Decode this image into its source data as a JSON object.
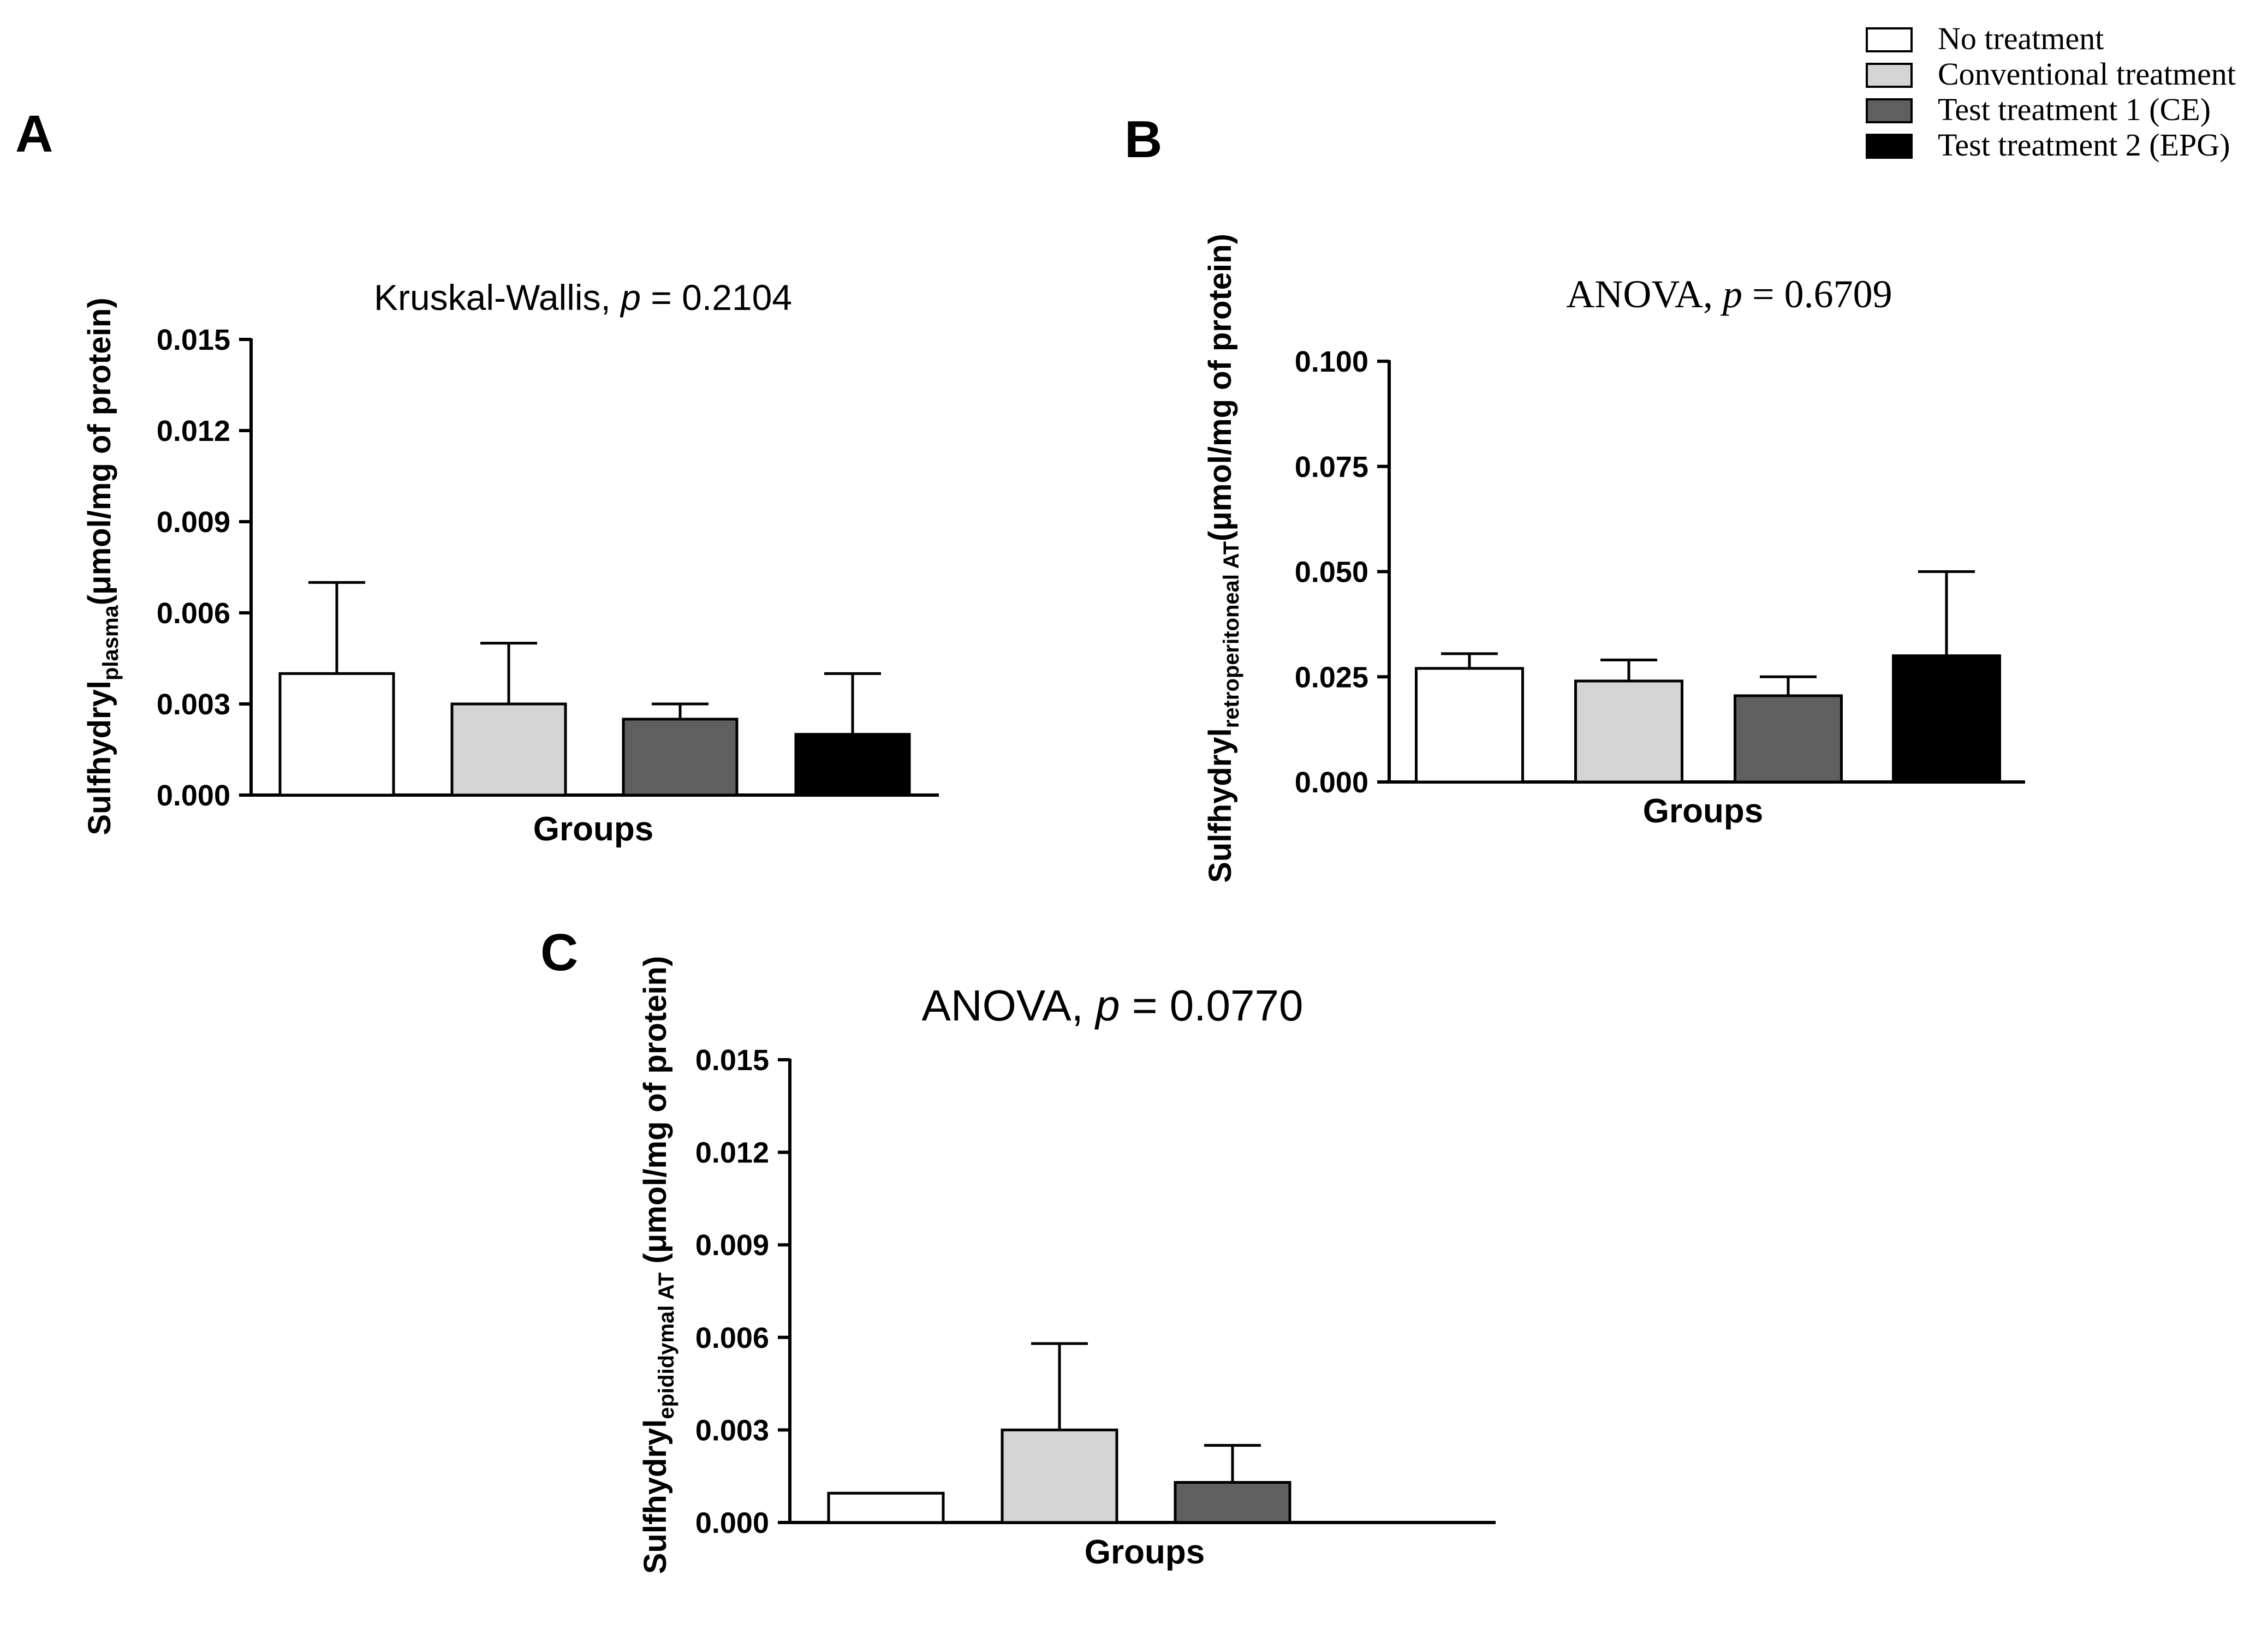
{
  "legend": {
    "items": [
      {
        "label": "No treatment",
        "color": "#ffffff"
      },
      {
        "label": "Conventional treatment",
        "color": "#d4d4d4"
      },
      {
        "label": "Test treatment 1 (CE)",
        "color": "#5f5f5f"
      },
      {
        "label": "Test treatment 2 (EPG)",
        "color": "#000000"
      }
    ]
  },
  "chart_data": [
    {
      "panel": "A",
      "type": "bar",
      "title_prefix": "Kruskal-Wallis, ",
      "title_p": "p",
      "title_suffix": " = 0.2104",
      "ylabel_main": "Sulfhydryl",
      "ylabel_sub": "plasma",
      "ylabel_unit": "(μmol/mg of protein)",
      "xlabel": "Groups",
      "ylim": [
        0,
        0.015
      ],
      "yticks": [
        "0.000",
        "0.003",
        "0.006",
        "0.009",
        "0.012",
        "0.015"
      ],
      "categories": [
        "No treatment",
        "Conventional treatment",
        "Test treatment 1 (CE)",
        "Test treatment 2 (EPG)"
      ],
      "values": [
        0.004,
        0.003,
        0.0025,
        0.002
      ],
      "errors": [
        0.003,
        0.002,
        0.0005,
        0.002
      ]
    },
    {
      "panel": "B",
      "type": "bar",
      "title_prefix": "ANOVA, ",
      "title_p": "p",
      "title_suffix": " = 0.6709",
      "ylabel_main": "Sulfhydryl",
      "ylabel_sub": "retroperitoneal AT",
      "ylabel_unit": "(μmol/mg of protein)",
      "xlabel": "Groups",
      "ylim": [
        0,
        0.1
      ],
      "yticks": [
        "0.000",
        "0.025",
        "0.050",
        "0.075",
        "0.100"
      ],
      "categories": [
        "No treatment",
        "Conventional treatment",
        "Test treatment 1 (CE)",
        "Test treatment 2 (EPG)"
      ],
      "values": [
        0.027,
        0.024,
        0.0205,
        0.03
      ],
      "errors": [
        0.0035,
        0.005,
        0.0045,
        0.02
      ]
    },
    {
      "panel": "C",
      "type": "bar",
      "title_prefix": "ANOVA, ",
      "title_p": "p",
      "title_suffix": " = 0.0770",
      "ylabel_main": "Sulfhydryl",
      "ylabel_sub": "epididymal AT",
      "ylabel_unit": " (μmol/mg of protein)",
      "xlabel": "Groups",
      "ylim": [
        0,
        0.015
      ],
      "yticks": [
        "0.000",
        "0.003",
        "0.006",
        "0.009",
        "0.012",
        "0.015"
      ],
      "categories": [
        "No treatment",
        "Conventional treatment",
        "Test treatment 1 (CE)"
      ],
      "values": [
        0.00095,
        0.003,
        0.0013
      ],
      "errors": [
        0,
        0.0028,
        0.0012
      ]
    }
  ]
}
